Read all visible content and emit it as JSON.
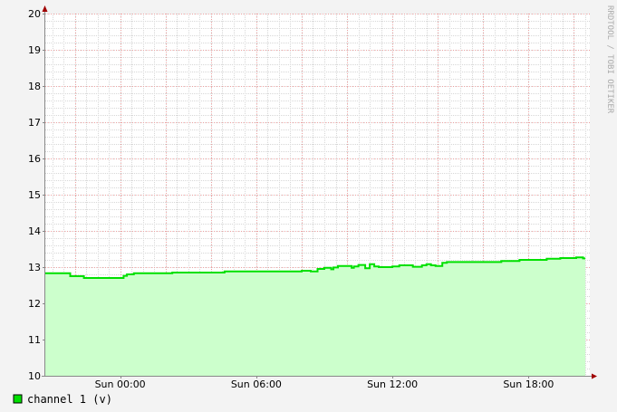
{
  "chart_data": {
    "type": "area",
    "title": "",
    "xlabel": "",
    "ylabel": "",
    "ylim": [
      10,
      20
    ],
    "xlim": [
      -3.3,
      20.7
    ],
    "x_unit": "hours relative to Sun 00:00",
    "yticks": [
      "10",
      "11",
      "12",
      "13",
      "14",
      "15",
      "16",
      "17",
      "18",
      "19",
      "20"
    ],
    "xticks": [
      {
        "label": "Sun 00:00",
        "x": 0
      },
      {
        "label": "Sun 06:00",
        "x": 6
      },
      {
        "label": "Sun 12:00",
        "x": 12
      },
      {
        "label": "Sun 18:00",
        "x": 18
      }
    ],
    "grid": true,
    "legend_position": "bottom-left",
    "series": [
      {
        "name": "channel 1 (v)",
        "color": "#00e000",
        "fill": "#ccffcc",
        "x": [
          -3.3,
          -2.2,
          -2.2,
          -1.6,
          -1.6,
          -0.6,
          -0.6,
          0.15,
          0.15,
          0.3,
          0.3,
          0.6,
          0.6,
          2.3,
          2.3,
          4.6,
          4.6,
          8.0,
          8.0,
          8.4,
          8.4,
          8.7,
          8.7,
          9.0,
          9.0,
          9.3,
          9.3,
          9.4,
          9.4,
          9.6,
          9.6,
          10.2,
          10.2,
          10.3,
          10.3,
          10.5,
          10.5,
          10.8,
          10.8,
          11.0,
          11.0,
          11.2,
          11.2,
          11.4,
          11.4,
          11.7,
          11.7,
          12.0,
          12.0,
          12.3,
          12.3,
          12.9,
          12.9,
          13.3,
          13.3,
          13.5,
          13.5,
          13.7,
          13.7,
          13.9,
          13.9,
          14.2,
          14.2,
          14.4,
          14.4,
          14.8,
          14.8,
          15.0,
          15.0,
          16.8,
          16.8,
          17.6,
          17.6,
          18.8,
          18.8,
          19.4,
          19.4,
          20.1,
          20.1,
          20.4,
          20.4,
          20.5
        ],
        "y": [
          12.83,
          12.83,
          12.75,
          12.75,
          12.7,
          12.7,
          12.7,
          12.7,
          12.76,
          12.76,
          12.8,
          12.8,
          12.83,
          12.83,
          12.85,
          12.85,
          12.88,
          12.88,
          12.9,
          12.9,
          12.88,
          12.88,
          12.95,
          12.95,
          12.98,
          12.98,
          12.94,
          12.94,
          12.99,
          12.99,
          13.03,
          13.03,
          12.98,
          12.98,
          13.02,
          13.02,
          13.06,
          13.06,
          12.97,
          12.97,
          13.08,
          13.08,
          13.02,
          13.02,
          13.0,
          13.0,
          13.0,
          13.0,
          13.02,
          13.02,
          13.05,
          13.05,
          13.01,
          13.01,
          13.05,
          13.05,
          13.08,
          13.08,
          13.05,
          13.05,
          13.03,
          13.03,
          13.12,
          13.12,
          13.14,
          13.14,
          13.14,
          13.14,
          13.14,
          13.14,
          13.17,
          13.17,
          13.2,
          13.2,
          13.23,
          13.23,
          13.25,
          13.25,
          13.27,
          13.27,
          13.24,
          13.24
        ]
      }
    ]
  },
  "legend": {
    "label": "channel 1 (v)",
    "swatch_color": "#00e000"
  },
  "watermark": {
    "text": "RRDTOOL / TOBI OETIKER"
  },
  "colors": {
    "background": "#f3f3f3",
    "canvas": "#ffffff",
    "major_grid": "#ff6f6f",
    "minor_grid": "#d7d7d7",
    "axis": "#888888",
    "arrow": "#a00000"
  }
}
